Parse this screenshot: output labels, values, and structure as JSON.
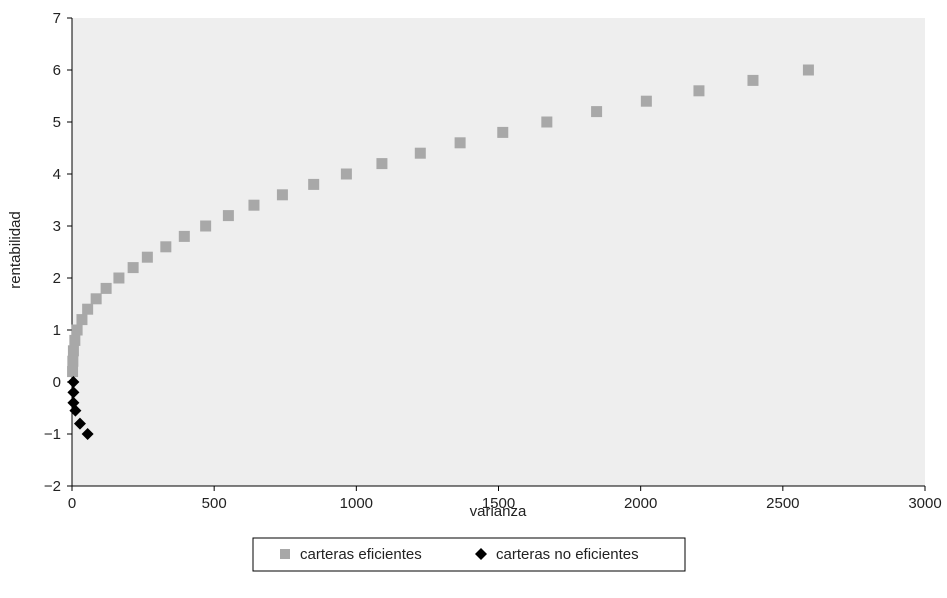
{
  "chart_data": {
    "type": "scatter",
    "xlabel": "varianza",
    "ylabel": "rentabilidad",
    "xlim": [
      0,
      3000
    ],
    "ylim": [
      -2,
      7
    ],
    "xticks": [
      0,
      500,
      1000,
      1500,
      2000,
      2500,
      3000
    ],
    "yticks": [
      -2,
      -1,
      0,
      1,
      2,
      3,
      4,
      5,
      6,
      7
    ],
    "ytick_labels": [
      "−2",
      "−1",
      "0",
      "1",
      "2",
      "3",
      "4",
      "5",
      "6",
      "7"
    ],
    "grid": false,
    "plot_background": "#eeeeee",
    "legend_position": "bottom",
    "series": [
      {
        "name": "carteras eficientes",
        "marker": "square",
        "color": "#a8a8a8",
        "points": [
          [
            2,
            0.2
          ],
          [
            3,
            0.4
          ],
          [
            5,
            0.6
          ],
          [
            10,
            0.8
          ],
          [
            18,
            1.0
          ],
          [
            35,
            1.2
          ],
          [
            55,
            1.4
          ],
          [
            85,
            1.6
          ],
          [
            120,
            1.8
          ],
          [
            165,
            2.0
          ],
          [
            215,
            2.2
          ],
          [
            265,
            2.4
          ],
          [
            330,
            2.6
          ],
          [
            395,
            2.8
          ],
          [
            470,
            3.0
          ],
          [
            550,
            3.2
          ],
          [
            640,
            3.4
          ],
          [
            740,
            3.6
          ],
          [
            850,
            3.8
          ],
          [
            965,
            4.0
          ],
          [
            1090,
            4.2
          ],
          [
            1225,
            4.4
          ],
          [
            1365,
            4.6
          ],
          [
            1515,
            4.8
          ],
          [
            1670,
            5.0
          ],
          [
            1845,
            5.2
          ],
          [
            2020,
            5.4
          ],
          [
            2205,
            5.6
          ],
          [
            2395,
            5.8
          ],
          [
            2590,
            6.0
          ]
        ]
      },
      {
        "name": "carteras no eficientes",
        "marker": "diamond",
        "color": "#000000",
        "points": [
          [
            5,
            0.0
          ],
          [
            5,
            -0.2
          ],
          [
            5,
            -0.4
          ],
          [
            12,
            -0.55
          ],
          [
            28,
            -0.8
          ],
          [
            55,
            -1.0
          ]
        ]
      }
    ]
  }
}
